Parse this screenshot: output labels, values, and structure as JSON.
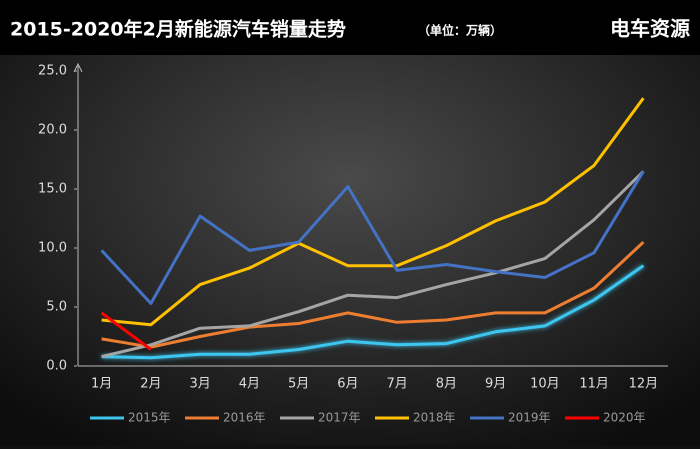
{
  "chart_data": {
    "type": "line",
    "title": "2015-2020年2月新能源汽车销量走势",
    "subtitle": "（单位：万辆）",
    "brand": "电车资源",
    "categories": [
      "1月",
      "2月",
      "3月",
      "4月",
      "5月",
      "6月",
      "7月",
      "8月",
      "9月",
      "10月",
      "11月",
      "12月"
    ],
    "ylim": [
      0,
      25
    ],
    "yticks": [
      {
        "value": 0,
        "label": "0.0"
      },
      {
        "value": 5,
        "label": "5.0"
      },
      {
        "value": 10,
        "label": "10.0"
      },
      {
        "value": 15,
        "label": "15.0"
      },
      {
        "value": 20,
        "label": "20.0"
      },
      {
        "value": 25,
        "label": "25.0"
      }
    ],
    "legend": "bottom",
    "series": [
      {
        "name": "2015年",
        "color": "#3cc6f0",
        "values": [
          0.8,
          0.7,
          1.0,
          1.0,
          1.4,
          2.1,
          1.8,
          1.9,
          2.9,
          3.4,
          5.6,
          8.5
        ]
      },
      {
        "name": "2016年",
        "color": "#ed7d31",
        "values": [
          2.3,
          1.6,
          2.5,
          3.3,
          3.6,
          4.5,
          3.7,
          3.9,
          4.5,
          4.5,
          6.6,
          10.5
        ]
      },
      {
        "name": "2017年",
        "color": "#a5a5a5",
        "values": [
          0.8,
          1.8,
          3.2,
          3.4,
          4.6,
          6.0,
          5.8,
          6.9,
          7.9,
          9.1,
          12.4,
          16.5
        ]
      },
      {
        "name": "2018年",
        "color": "#ffc000",
        "values": [
          3.9,
          3.5,
          6.9,
          8.3,
          10.4,
          8.5,
          8.5,
          10.2,
          12.3,
          13.9,
          17.0,
          22.7
        ]
      },
      {
        "name": "2019年",
        "color": "#4472c4",
        "values": [
          9.8,
          5.3,
          12.7,
          9.8,
          10.5,
          15.2,
          8.1,
          8.6,
          8.0,
          7.5,
          9.6,
          16.5
        ]
      },
      {
        "name": "2020年",
        "color": "#ff0000",
        "values": [
          4.5,
          1.4,
          null,
          null,
          null,
          null,
          null,
          null,
          null,
          null,
          null,
          null
        ]
      }
    ]
  }
}
